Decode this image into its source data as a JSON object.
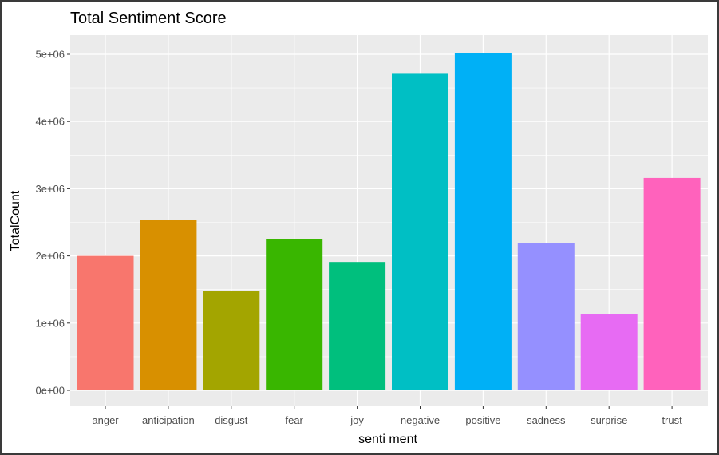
{
  "chart_data": {
    "type": "bar",
    "title": "Total Sentiment Score",
    "xlabel": "senti ment",
    "ylabel": "TotalCount",
    "categories": [
      "anger",
      "anticipation",
      "disgust",
      "fear",
      "joy",
      "negative",
      "positive",
      "sadness",
      "surprise",
      "trust"
    ],
    "values": [
      2000000,
      2530000,
      1480000,
      2250000,
      1910000,
      4710000,
      5020000,
      2190000,
      1140000,
      3160000
    ],
    "colors": [
      "#F8766D",
      "#D89000",
      "#A3A500",
      "#39B600",
      "#00BF7D",
      "#00BFC4",
      "#00B0F6",
      "#9590FF",
      "#E76BF3",
      "#FF62BC"
    ],
    "yticks": [
      0,
      1000000,
      2000000,
      3000000,
      4000000,
      5000000
    ],
    "ytick_labels": [
      "0e+00",
      "1e+06",
      "2e+06",
      "3e+06",
      "4e+06",
      "5e+06"
    ],
    "ylim": [
      0,
      5300000
    ],
    "grid": true,
    "legend": "none",
    "panel_background": "#EBEBEB",
    "gridline_color": "#FFFFFF"
  }
}
